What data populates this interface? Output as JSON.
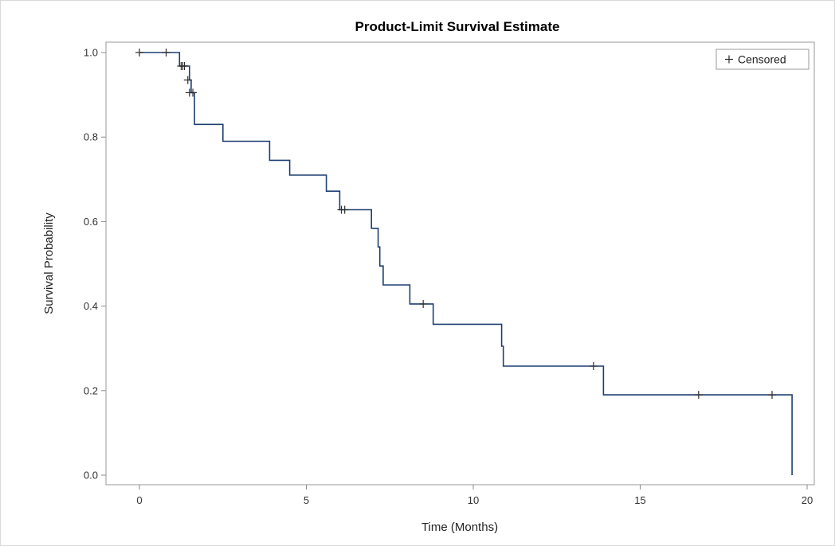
{
  "chart_data": {
    "type": "line",
    "title": "Product-Limit Survival Estimate",
    "xlabel": "Time (Months)",
    "ylabel": "Survival Probability",
    "xlim": [
      0,
      20
    ],
    "ylim": [
      0.0,
      1.0
    ],
    "xticks": [
      "0",
      "5",
      "10",
      "15",
      "20"
    ],
    "yticks": [
      "0.0",
      "0.2",
      "0.4",
      "0.6",
      "0.8",
      "1.0"
    ],
    "grid": false,
    "legend": {
      "placement": "top-right",
      "entries": [
        "Censored"
      ]
    },
    "step": [
      [
        0,
        1.0
      ],
      [
        1.2,
        0.968
      ],
      [
        1.5,
        0.935
      ],
      [
        1.55,
        0.905
      ],
      [
        1.65,
        0.83
      ],
      [
        2.5,
        0.79
      ],
      [
        3.9,
        0.745
      ],
      [
        4.5,
        0.71
      ],
      [
        5.6,
        0.672
      ],
      [
        6.0,
        0.628
      ],
      [
        6.95,
        0.584
      ],
      [
        7.15,
        0.54
      ],
      [
        7.2,
        0.495
      ],
      [
        7.3,
        0.45
      ],
      [
        8.1,
        0.405
      ],
      [
        8.8,
        0.357
      ],
      [
        10.85,
        0.305
      ],
      [
        10.9,
        0.258
      ],
      [
        13.9,
        0.19
      ],
      [
        19.55,
        0.0
      ]
    ],
    "end_x": 19.55,
    "censored": [
      [
        0.0,
        1.0
      ],
      [
        0.8,
        1.0
      ],
      [
        1.25,
        0.968
      ],
      [
        1.3,
        0.968
      ],
      [
        1.35,
        0.968
      ],
      [
        1.45,
        0.935
      ],
      [
        1.5,
        0.905
      ],
      [
        1.6,
        0.905
      ],
      [
        6.05,
        0.628
      ],
      [
        6.15,
        0.628
      ],
      [
        8.5,
        0.405
      ],
      [
        13.6,
        0.258
      ],
      [
        16.75,
        0.19
      ],
      [
        18.95,
        0.19
      ]
    ],
    "colors": {
      "line": "#1f3f73",
      "censor": "#2b2b2b"
    }
  }
}
